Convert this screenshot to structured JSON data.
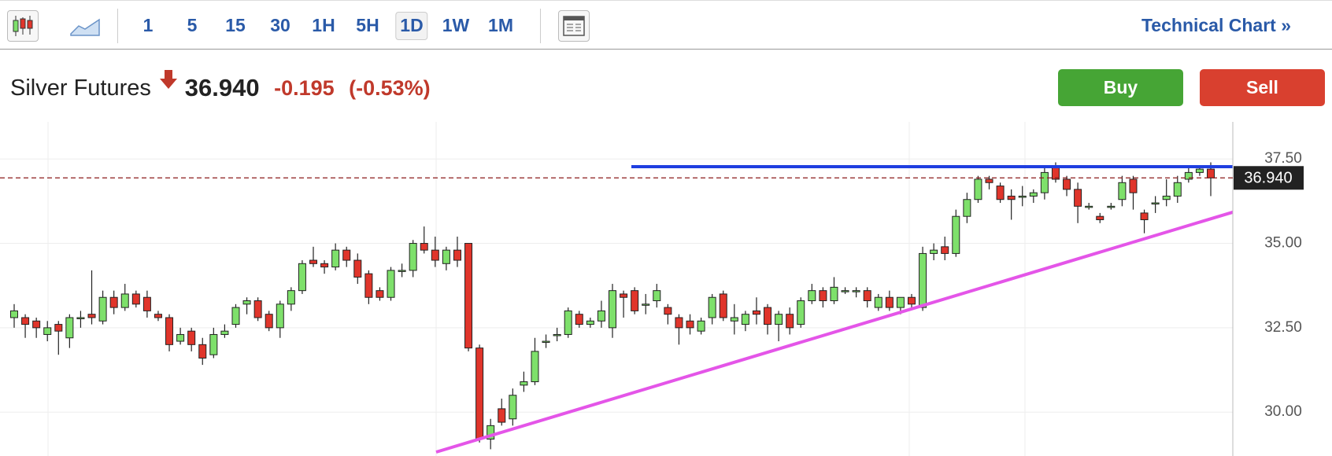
{
  "toolbar": {
    "intervals": [
      "1",
      "5",
      "15",
      "30",
      "1H",
      "5H",
      "1D",
      "1W",
      "1M"
    ],
    "link": "Technical Chart »"
  },
  "header": {
    "title": "Silver Futures",
    "price": "36.940",
    "change": "-0.195",
    "change_pct": "(-0.53%)",
    "buy": "Buy",
    "sell": "Sell"
  },
  "chart_data": {
    "type": "candlestick",
    "open": [
      32.8,
      32.8,
      32.7,
      32.3,
      32.6,
      32.2,
      32.8,
      32.9,
      32.7,
      33.4,
      33.1,
      33.5,
      33.4,
      32.9,
      32.8,
      32.1,
      32.4,
      32.0,
      31.7,
      32.3,
      32.6,
      33.2,
      33.3,
      32.9,
      32.5,
      33.2,
      33.6,
      34.5,
      34.4,
      34.3,
      34.8,
      34.5,
      34.1,
      33.6,
      33.4,
      34.2,
      34.2,
      35.0,
      34.8,
      34.4,
      34.8,
      35.0,
      31.9,
      29.2,
      30.1,
      29.8,
      30.8,
      30.9,
      32.1,
      32.3,
      32.3,
      32.9,
      32.6,
      32.7,
      32.5,
      33.5,
      33.6,
      33.2,
      33.3,
      33.1,
      32.8,
      32.7,
      32.4,
      32.8,
      33.5,
      32.7,
      32.6,
      33.0,
      33.1,
      32.6,
      32.9,
      32.6,
      33.3,
      33.6,
      33.3,
      33.6,
      33.6,
      33.6,
      33.1,
      33.4,
      33.1,
      33.4,
      33.1,
      34.7,
      34.9,
      34.7,
      35.8,
      36.3,
      36.9,
      36.7,
      36.4,
      36.4,
      36.4,
      36.5,
      37.3,
      36.9,
      36.6,
      36.1,
      35.8,
      36.1,
      36.3,
      36.9,
      35.9,
      36.2,
      36.3,
      36.4,
      36.9,
      37.1,
      37.2
    ],
    "high": [
      33.2,
      32.9,
      32.8,
      32.7,
      32.7,
      32.9,
      33.0,
      34.2,
      33.6,
      33.6,
      33.8,
      33.6,
      33.6,
      33.0,
      32.9,
      32.5,
      32.5,
      32.2,
      32.5,
      32.6,
      33.2,
      33.4,
      33.4,
      33.0,
      33.3,
      33.7,
      34.5,
      34.9,
      34.5,
      35.0,
      34.9,
      34.7,
      34.2,
      33.7,
      34.3,
      34.4,
      35.1,
      35.5,
      35.2,
      34.9,
      35.2,
      35.0,
      32.0,
      29.8,
      30.4,
      30.7,
      31.2,
      32.2,
      32.3,
      32.5,
      33.1,
      33.0,
      32.8,
      33.3,
      33.8,
      33.6,
      33.7,
      33.5,
      33.8,
      33.2,
      32.9,
      32.9,
      32.8,
      33.5,
      33.6,
      33.2,
      33.0,
      33.4,
      33.2,
      33.0,
      33.1,
      33.4,
      33.8,
      33.7,
      34.0,
      33.7,
      33.7,
      33.7,
      33.5,
      33.6,
      33.4,
      33.5,
      34.9,
      35.0,
      35.2,
      36.0,
      36.5,
      37.0,
      37.0,
      36.8,
      36.6,
      36.7,
      36.6,
      37.3,
      37.4,
      37.0,
      36.8,
      36.2,
      35.9,
      36.2,
      37.0,
      37.0,
      36.0,
      36.4,
      36.9,
      37.0,
      37.3,
      37.3,
      37.4
    ],
    "low": [
      32.5,
      32.2,
      32.2,
      32.1,
      31.7,
      31.9,
      32.5,
      32.6,
      32.6,
      32.9,
      33.0,
      33.1,
      32.8,
      32.7,
      31.8,
      32.0,
      31.8,
      31.4,
      31.6,
      32.2,
      32.5,
      32.9,
      32.7,
      32.4,
      32.2,
      33.0,
      33.5,
      34.3,
      34.1,
      34.2,
      34.3,
      33.8,
      33.2,
      33.3,
      33.3,
      34.0,
      34.0,
      34.7,
      34.3,
      34.2,
      34.3,
      31.8,
      29.1,
      28.9,
      29.6,
      29.6,
      30.6,
      30.8,
      31.9,
      32.1,
      32.2,
      32.5,
      32.5,
      32.5,
      32.2,
      32.8,
      32.9,
      32.9,
      33.1,
      32.6,
      32.0,
      32.3,
      32.3,
      32.6,
      32.7,
      32.3,
      32.4,
      32.6,
      32.3,
      32.1,
      32.3,
      32.5,
      33.2,
      33.1,
      33.2,
      33.5,
      33.4,
      33.1,
      33.0,
      33.0,
      32.9,
      33.1,
      33.0,
      34.5,
      34.5,
      34.6,
      35.6,
      36.2,
      36.6,
      36.2,
      35.7,
      36.1,
      36.2,
      36.3,
      36.8,
      36.4,
      35.6,
      36.0,
      35.6,
      36.0,
      36.1,
      36.0,
      35.3,
      35.9,
      36.1,
      36.2,
      36.8,
      37.0,
      36.4
    ],
    "close": [
      33.0,
      32.6,
      32.5,
      32.5,
      32.4,
      32.8,
      32.8,
      32.8,
      33.4,
      33.1,
      33.5,
      33.2,
      33.0,
      32.8,
      32.0,
      32.3,
      32.0,
      31.6,
      32.3,
      32.4,
      33.1,
      33.3,
      32.8,
      32.5,
      33.2,
      33.6,
      34.4,
      34.4,
      34.3,
      34.8,
      34.5,
      34.0,
      33.4,
      33.4,
      34.2,
      34.2,
      35.0,
      34.8,
      34.5,
      34.8,
      34.5,
      31.9,
      29.2,
      29.6,
      29.7,
      30.5,
      30.9,
      31.8,
      32.1,
      32.3,
      33.0,
      32.6,
      32.7,
      33.0,
      33.6,
      33.4,
      33.0,
      33.2,
      33.6,
      32.9,
      32.5,
      32.5,
      32.7,
      33.4,
      32.8,
      32.8,
      32.9,
      32.9,
      32.6,
      32.9,
      32.5,
      33.3,
      33.6,
      33.3,
      33.7,
      33.6,
      33.6,
      33.3,
      33.4,
      33.1,
      33.4,
      33.2,
      34.7,
      34.8,
      34.7,
      35.8,
      36.3,
      36.9,
      36.8,
      36.3,
      36.3,
      36.4,
      36.5,
      37.1,
      36.9,
      36.6,
      36.1,
      36.1,
      35.7,
      36.1,
      36.8,
      36.5,
      35.7,
      36.2,
      36.4,
      36.8,
      37.1,
      37.2,
      36.94
    ],
    "up_color": "#7ee06b",
    "down_color": "#e0352b",
    "ylim": [
      28.7,
      38.6
    ],
    "yticks": [
      {
        "value": 30,
        "label": "30.00"
      },
      {
        "value": 32.5,
        "label": "32.50"
      },
      {
        "value": 35,
        "label": "35.00"
      },
      {
        "value": 37.5,
        "label": "37.50"
      }
    ],
    "last_price": {
      "value": 36.94,
      "label": "36.940"
    },
    "grid": true
  }
}
